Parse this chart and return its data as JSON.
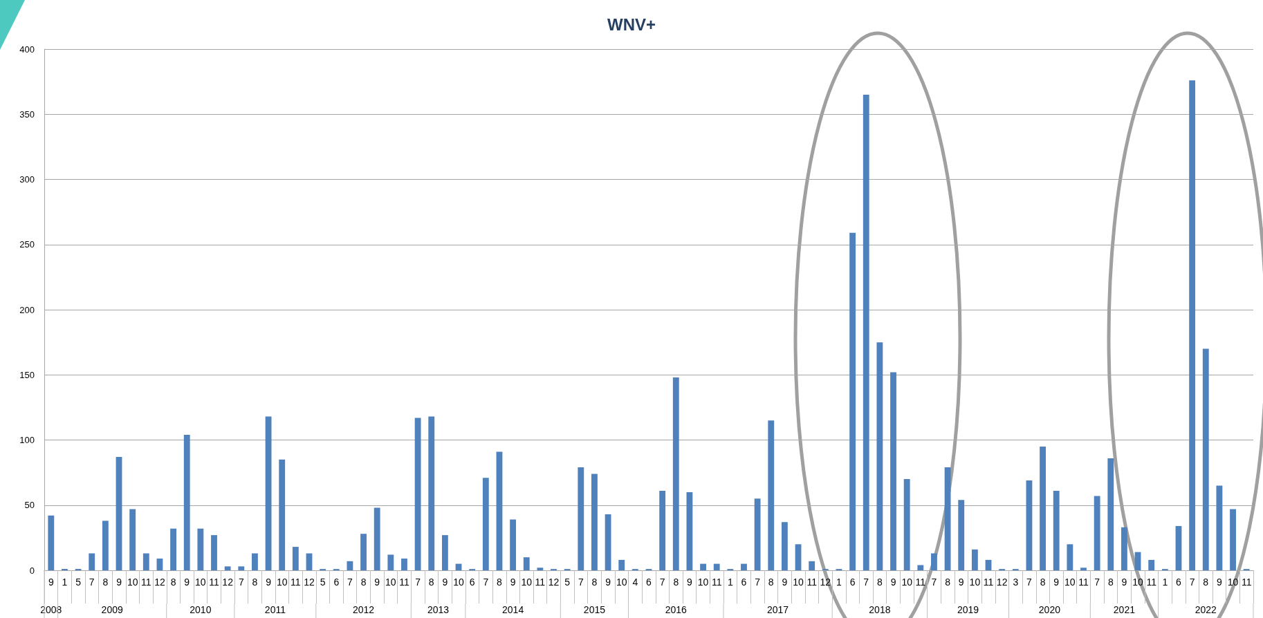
{
  "chart_data": {
    "type": "bar",
    "title": "WNV+",
    "categories": [
      "9",
      "1",
      "5",
      "7",
      "8",
      "9",
      "10",
      "11",
      "12",
      "8",
      "9",
      "10",
      "11",
      "12",
      "7",
      "8",
      "9",
      "10",
      "11",
      "12",
      "5",
      "6",
      "7",
      "8",
      "9",
      "10",
      "11",
      "7",
      "8",
      "9",
      "10",
      "6",
      "7",
      "8",
      "9",
      "10",
      "11",
      "12",
      "5",
      "7",
      "8",
      "9",
      "10",
      "4",
      "6",
      "7",
      "8",
      "9",
      "10",
      "11",
      "1",
      "6",
      "7",
      "8",
      "9",
      "10",
      "11",
      "12",
      "1",
      "6",
      "7",
      "8",
      "9",
      "10",
      "11",
      "7",
      "8",
      "9",
      "10",
      "11",
      "12",
      "3",
      "7",
      "8",
      "9",
      "10",
      "11",
      "7",
      "8",
      "9",
      "10",
      "11",
      "1",
      "6",
      "7",
      "8",
      "9",
      "10",
      "11"
    ],
    "ylim": [
      0,
      400
    ],
    "yticks": [
      0,
      50,
      100,
      150,
      200,
      250,
      300,
      350,
      400
    ],
    "grid": "y",
    "series": [
      {
        "name": "2008",
        "color": "#4f81bd",
        "values": [
          42,
          null,
          null,
          null,
          null,
          null,
          null,
          null,
          null,
          null,
          null,
          null,
          null,
          null,
          null,
          null,
          null,
          null,
          null,
          null,
          null,
          null,
          null,
          null,
          null,
          null,
          null,
          null,
          null,
          null,
          null,
          null,
          null,
          null,
          null,
          null,
          null,
          null,
          null,
          null,
          null,
          null,
          null,
          null,
          null,
          null,
          null,
          null,
          null,
          null,
          null,
          null,
          null,
          null,
          null,
          null,
          null,
          null,
          null,
          null,
          null,
          null,
          null,
          null,
          null,
          null,
          null,
          null,
          null,
          null,
          null,
          null,
          null,
          null,
          null,
          null,
          null,
          null,
          null,
          null,
          null,
          null,
          null,
          null,
          null,
          null,
          null,
          null,
          null
        ]
      },
      {
        "name": "2009",
        "color": "#4f81bd",
        "values": [
          null,
          1,
          1,
          13,
          38,
          87,
          47,
          13,
          9,
          null,
          null,
          null,
          null,
          null,
          null,
          null,
          null,
          null,
          null,
          null,
          null,
          null,
          null,
          null,
          null,
          null,
          null,
          null,
          null,
          null,
          null,
          null,
          null,
          null,
          null,
          null,
          null,
          null,
          null,
          null,
          null,
          null,
          null,
          null,
          null,
          null,
          null,
          null,
          null,
          null,
          null,
          null,
          null,
          null,
          null,
          null,
          null,
          null,
          null,
          null,
          null,
          null,
          null,
          null,
          null,
          null,
          null,
          null,
          null,
          null,
          null,
          null,
          null,
          null,
          null,
          null,
          null,
          null,
          null,
          null,
          null,
          null,
          null,
          null,
          null,
          null,
          null,
          null,
          null
        ]
      },
      {
        "name": "2010",
        "color": "#4f81bd",
        "values": [
          null,
          null,
          null,
          null,
          null,
          null,
          null,
          null,
          null,
          32,
          104,
          32,
          27,
          3,
          null,
          null,
          null,
          null,
          null,
          null,
          null,
          null,
          null,
          null,
          null,
          null,
          null,
          null,
          null,
          null,
          null,
          null,
          null,
          null,
          null,
          null,
          null,
          null,
          null,
          null,
          null,
          null,
          null,
          null,
          null,
          null,
          null,
          null,
          null,
          null,
          null,
          null,
          null,
          null,
          null,
          null,
          null,
          null,
          null,
          null,
          null,
          null,
          null,
          null,
          null,
          null,
          null,
          null,
          null,
          null,
          null,
          null,
          null,
          null,
          null,
          null,
          null,
          null,
          null,
          null,
          null,
          null,
          null,
          null,
          null,
          null,
          null,
          null,
          null
        ]
      },
      {
        "name": "2011",
        "color": "#4f81bd",
        "values": [
          null,
          null,
          null,
          null,
          null,
          null,
          null,
          null,
          null,
          null,
          null,
          null,
          null,
          null,
          3,
          13,
          118,
          85,
          18,
          13,
          null,
          null,
          null,
          null,
          null,
          null,
          null,
          null,
          null,
          null,
          null,
          null,
          null,
          null,
          null,
          null,
          null,
          null,
          null,
          null,
          null,
          null,
          null,
          null,
          null,
          null,
          null,
          null,
          null,
          null,
          null,
          null,
          null,
          null,
          null,
          null,
          null,
          null,
          null,
          null,
          null,
          null,
          null,
          null,
          null,
          null,
          null,
          null,
          null,
          null,
          null,
          null,
          null,
          null,
          null,
          null,
          null,
          null,
          null,
          null,
          null,
          null,
          null,
          null,
          null,
          null,
          null,
          null,
          null
        ]
      },
      {
        "name": "2012",
        "color": "#4f81bd",
        "values": [
          null,
          null,
          null,
          null,
          null,
          null,
          null,
          null,
          null,
          null,
          null,
          null,
          null,
          null,
          null,
          null,
          null,
          null,
          null,
          null,
          1,
          1,
          7,
          28,
          48,
          12,
          9,
          null,
          null,
          null,
          null,
          null,
          null,
          null,
          null,
          null,
          null,
          null,
          null,
          null,
          null,
          null,
          null,
          null,
          null,
          null,
          null,
          null,
          null,
          null,
          null,
          null,
          null,
          null,
          null,
          null,
          null,
          null,
          null,
          null,
          null,
          null,
          null,
          null,
          null,
          null,
          null,
          null,
          null,
          null,
          null,
          null,
          null,
          null,
          null,
          null,
          null,
          null,
          null,
          null,
          null,
          null,
          null,
          null,
          null,
          null,
          null,
          null,
          null
        ]
      },
      {
        "name": "2013",
        "color": "#4f81bd",
        "values": [
          null,
          null,
          null,
          null,
          null,
          null,
          null,
          null,
          null,
          null,
          null,
          null,
          null,
          null,
          null,
          null,
          null,
          null,
          null,
          null,
          null,
          null,
          null,
          null,
          null,
          null,
          null,
          117,
          118,
          27,
          5,
          null,
          null,
          null,
          null,
          null,
          null,
          null,
          null,
          null,
          null,
          null,
          null,
          null,
          null,
          null,
          null,
          null,
          null,
          null,
          null,
          null,
          null,
          null,
          null,
          null,
          null,
          null,
          null,
          null,
          null,
          null,
          null,
          null,
          null,
          null,
          null,
          null,
          null,
          null,
          null,
          null,
          null,
          null,
          null,
          null,
          null,
          null,
          null,
          null,
          null,
          null,
          null,
          null,
          null,
          null,
          null,
          null,
          null
        ]
      },
      {
        "name": "2014",
        "color": "#4f81bd",
        "values": [
          null,
          null,
          null,
          null,
          null,
          null,
          null,
          null,
          null,
          null,
          null,
          null,
          null,
          null,
          null,
          null,
          null,
          null,
          null,
          null,
          null,
          null,
          null,
          null,
          null,
          null,
          null,
          null,
          null,
          null,
          null,
          1,
          71,
          91,
          39,
          10,
          2,
          1,
          null,
          null,
          null,
          null,
          null,
          null,
          null,
          null,
          null,
          null,
          null,
          null,
          null,
          null,
          null,
          null,
          null,
          null,
          null,
          null,
          null,
          null,
          null,
          null,
          null,
          null,
          null,
          null,
          null,
          null,
          null,
          null,
          null,
          null,
          null,
          null,
          null,
          null,
          null,
          null,
          null,
          null,
          null,
          null,
          null,
          null,
          null,
          null,
          null,
          null,
          null
        ]
      },
      {
        "name": "2015",
        "color": "#4f81bd",
        "values": [
          null,
          null,
          null,
          null,
          null,
          null,
          null,
          null,
          null,
          null,
          null,
          null,
          null,
          null,
          null,
          null,
          null,
          null,
          null,
          null,
          null,
          null,
          null,
          null,
          null,
          null,
          null,
          null,
          null,
          null,
          null,
          null,
          null,
          null,
          null,
          null,
          null,
          null,
          1,
          79,
          74,
          43,
          8,
          null,
          null,
          null,
          null,
          null,
          null,
          null,
          null,
          null,
          null,
          null,
          null,
          null,
          null,
          null,
          null,
          null,
          null,
          null,
          null,
          null,
          null,
          null,
          null,
          null,
          null,
          null,
          null,
          null,
          null,
          null,
          null,
          null,
          null,
          null,
          null,
          null,
          null,
          null,
          null,
          null,
          null,
          null,
          null,
          null,
          null
        ]
      },
      {
        "name": "2016",
        "color": "#4f81bd",
        "values": [
          null,
          null,
          null,
          null,
          null,
          null,
          null,
          null,
          null,
          null,
          null,
          null,
          null,
          null,
          null,
          null,
          null,
          null,
          null,
          null,
          null,
          null,
          null,
          null,
          null,
          null,
          null,
          null,
          null,
          null,
          null,
          null,
          null,
          null,
          null,
          null,
          null,
          null,
          null,
          null,
          null,
          null,
          null,
          1,
          1,
          61,
          148,
          60,
          5,
          5,
          null,
          null,
          null,
          null,
          null,
          null,
          null,
          null,
          null,
          null,
          null,
          null,
          null,
          null,
          null,
          null,
          null,
          null,
          null,
          null,
          null,
          null,
          null,
          null,
          null,
          null,
          null,
          null,
          null,
          null,
          null,
          null,
          null,
          null,
          null,
          null,
          null,
          null,
          null
        ]
      },
      {
        "name": "2017",
        "color": "#4f81bd",
        "values": [
          null,
          null,
          null,
          null,
          null,
          null,
          null,
          null,
          null,
          null,
          null,
          null,
          null,
          null,
          null,
          null,
          null,
          null,
          null,
          null,
          null,
          null,
          null,
          null,
          null,
          null,
          null,
          null,
          null,
          null,
          null,
          null,
          null,
          null,
          null,
          null,
          null,
          null,
          null,
          null,
          null,
          null,
          null,
          null,
          null,
          null,
          null,
          null,
          null,
          null,
          1,
          5,
          55,
          115,
          37,
          20,
          7,
          1,
          null,
          null,
          null,
          null,
          null,
          null,
          null,
          null,
          null,
          null,
          null,
          null,
          null,
          null,
          null,
          null,
          null,
          null,
          null,
          null,
          null,
          null,
          null,
          null,
          null,
          null,
          null,
          null,
          null,
          null,
          null
        ]
      },
      {
        "name": "2018",
        "color": "#4f81bd",
        "values": [
          null,
          null,
          null,
          null,
          null,
          null,
          null,
          null,
          null,
          null,
          null,
          null,
          null,
          null,
          null,
          null,
          null,
          null,
          null,
          null,
          null,
          null,
          null,
          null,
          null,
          null,
          null,
          null,
          null,
          null,
          null,
          null,
          null,
          null,
          null,
          null,
          null,
          null,
          null,
          null,
          null,
          null,
          null,
          null,
          null,
          null,
          null,
          null,
          null,
          null,
          null,
          null,
          null,
          null,
          null,
          null,
          null,
          null,
          1,
          259,
          365,
          175,
          152,
          70,
          4,
          null,
          null,
          null,
          null,
          null,
          null,
          null,
          null,
          null,
          null,
          null,
          null,
          null,
          null,
          null,
          null,
          null,
          null,
          null,
          null,
          null,
          null,
          null,
          null
        ]
      },
      {
        "name": "2019",
        "color": "#4f81bd",
        "values": [
          null,
          null,
          null,
          null,
          null,
          null,
          null,
          null,
          null,
          null,
          null,
          null,
          null,
          null,
          null,
          null,
          null,
          null,
          null,
          null,
          null,
          null,
          null,
          null,
          null,
          null,
          null,
          null,
          null,
          null,
          null,
          null,
          null,
          null,
          null,
          null,
          null,
          null,
          null,
          null,
          null,
          null,
          null,
          null,
          null,
          null,
          null,
          null,
          null,
          null,
          null,
          null,
          null,
          null,
          null,
          null,
          null,
          null,
          null,
          null,
          null,
          null,
          null,
          null,
          null,
          13,
          79,
          54,
          16,
          8,
          1,
          null,
          null,
          null,
          null,
          null,
          null,
          null,
          null,
          null,
          null,
          null,
          null,
          null,
          null,
          null,
          null,
          null,
          null
        ]
      },
      {
        "name": "2020",
        "color": "#4f81bd",
        "values": [
          null,
          null,
          null,
          null,
          null,
          null,
          null,
          null,
          null,
          null,
          null,
          null,
          null,
          null,
          null,
          null,
          null,
          null,
          null,
          null,
          null,
          null,
          null,
          null,
          null,
          null,
          null,
          null,
          null,
          null,
          null,
          null,
          null,
          null,
          null,
          null,
          null,
          null,
          null,
          null,
          null,
          null,
          null,
          null,
          null,
          null,
          null,
          null,
          null,
          null,
          null,
          null,
          null,
          null,
          null,
          null,
          null,
          null,
          null,
          null,
          null,
          null,
          null,
          null,
          null,
          null,
          null,
          null,
          null,
          null,
          null,
          1,
          69,
          95,
          61,
          20,
          2,
          null,
          null,
          null,
          null,
          null,
          null,
          null,
          null,
          null,
          null,
          null,
          null
        ]
      },
      {
        "name": "2021",
        "color": "#4f81bd",
        "values": [
          null,
          null,
          null,
          null,
          null,
          null,
          null,
          null,
          null,
          null,
          null,
          null,
          null,
          null,
          null,
          null,
          null,
          null,
          null,
          null,
          null,
          null,
          null,
          null,
          null,
          null,
          null,
          null,
          null,
          null,
          null,
          null,
          null,
          null,
          null,
          null,
          null,
          null,
          null,
          null,
          null,
          null,
          null,
          null,
          null,
          null,
          null,
          null,
          null,
          null,
          null,
          null,
          null,
          null,
          null,
          null,
          null,
          null,
          null,
          null,
          null,
          null,
          null,
          null,
          null,
          null,
          null,
          null,
          null,
          null,
          null,
          null,
          null,
          null,
          null,
          null,
          null,
          57,
          86,
          33,
          14,
          8,
          null,
          null,
          null,
          null,
          null,
          null,
          null
        ]
      },
      {
        "name": "2022",
        "color": "#4f81bd",
        "values": [
          null,
          null,
          null,
          null,
          null,
          null,
          null,
          null,
          null,
          null,
          null,
          null,
          null,
          null,
          null,
          null,
          null,
          null,
          null,
          null,
          null,
          null,
          null,
          null,
          null,
          null,
          null,
          null,
          null,
          null,
          null,
          null,
          null,
          null,
          null,
          null,
          null,
          null,
          null,
          null,
          null,
          null,
          null,
          null,
          null,
          null,
          null,
          null,
          null,
          null,
          null,
          null,
          null,
          null,
          null,
          null,
          null,
          null,
          null,
          null,
          null,
          null,
          null,
          null,
          null,
          null,
          null,
          null,
          null,
          null,
          null,
          null,
          null,
          null,
          null,
          null,
          null,
          null,
          null,
          null,
          null,
          null,
          1,
          34,
          376,
          170,
          65,
          47,
          1
        ]
      }
    ]
  }
}
